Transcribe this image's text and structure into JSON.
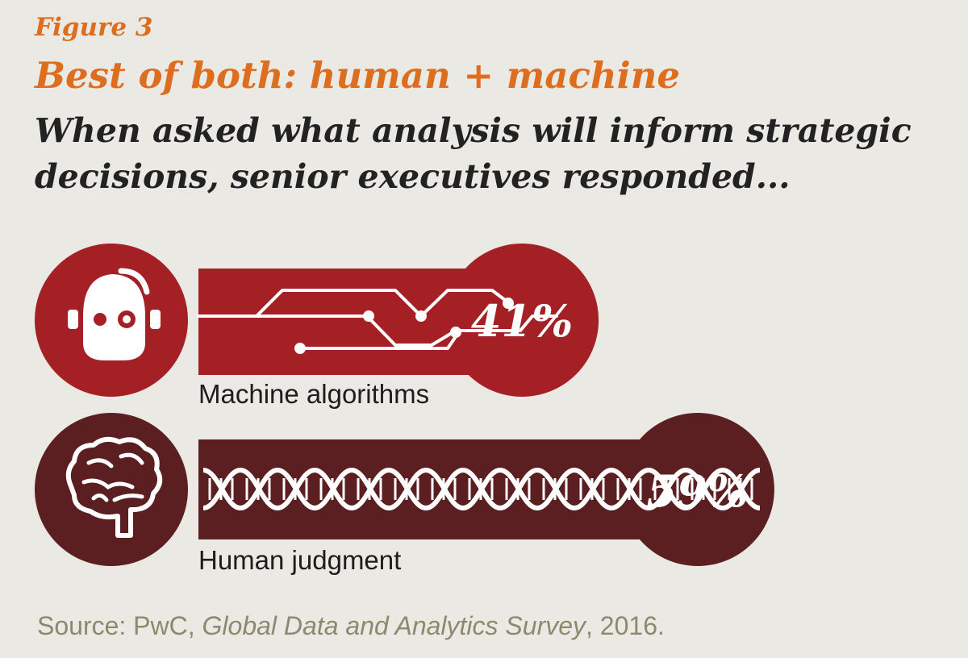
{
  "header": {
    "figure_label": "Figure 3",
    "title": "Best of both: human + machine",
    "subtitle": "When asked what analysis will inform strategic decisions, senior executives responded..."
  },
  "chart_data": {
    "type": "bar",
    "categories": [
      "Machine algorithms",
      "Human judgment"
    ],
    "values": [
      41,
      59
    ],
    "value_labels": [
      "41%",
      "59%"
    ],
    "unit": "%",
    "icons": [
      "robot-icon",
      "brain-icon"
    ],
    "colors": [
      "#a42025",
      "#5b1f22"
    ]
  },
  "source": {
    "prefix": "Source: PwC, ",
    "survey": "Global Data and Analytics Survey",
    "suffix": ", 2016."
  }
}
